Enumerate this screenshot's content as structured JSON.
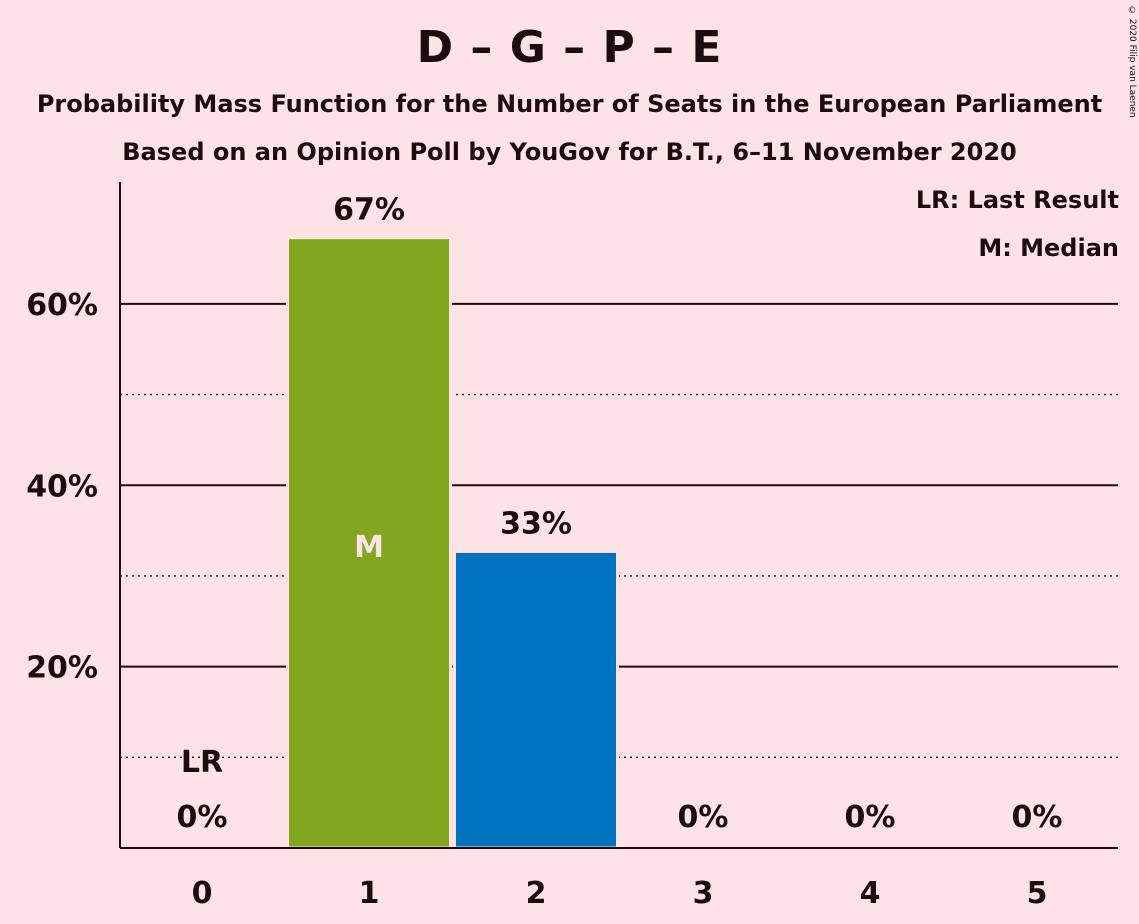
{
  "chart_data": {
    "type": "bar",
    "title": "D – G – P – E",
    "subtitle": "Probability Mass Function for the Number of Seats in the European Parliament",
    "subtitle2": "Based on an Opinion Poll by YouGov for B.T., 6–11 November 2020",
    "copyright": "© 2020 Filip van Laenen",
    "categories": [
      "0",
      "1",
      "2",
      "3",
      "4",
      "5"
    ],
    "values": [
      0,
      67.3,
      32.7,
      0,
      0,
      0
    ],
    "data_labels": [
      "0%",
      "67%",
      "33%",
      "0%",
      "0%",
      "0%"
    ],
    "bar_colors": [
      "#82A61E",
      "#82A61E",
      "#0073BE",
      "#0073BE",
      "#0073BE",
      "#0073BE"
    ],
    "ylim": [
      0,
      73
    ],
    "yticks": [
      20,
      40,
      60
    ],
    "ytick_labels": [
      "20%",
      "40%",
      "60%"
    ],
    "minor_gridlines": [
      10,
      30,
      50
    ],
    "last_result": {
      "seat": "0",
      "label": "LR"
    },
    "median": {
      "seat": "1",
      "label": "M"
    },
    "legend": [
      "LR: Last Result",
      "M: Median"
    ],
    "legend_position": "top-right",
    "xlabel": "",
    "ylabel": ""
  }
}
